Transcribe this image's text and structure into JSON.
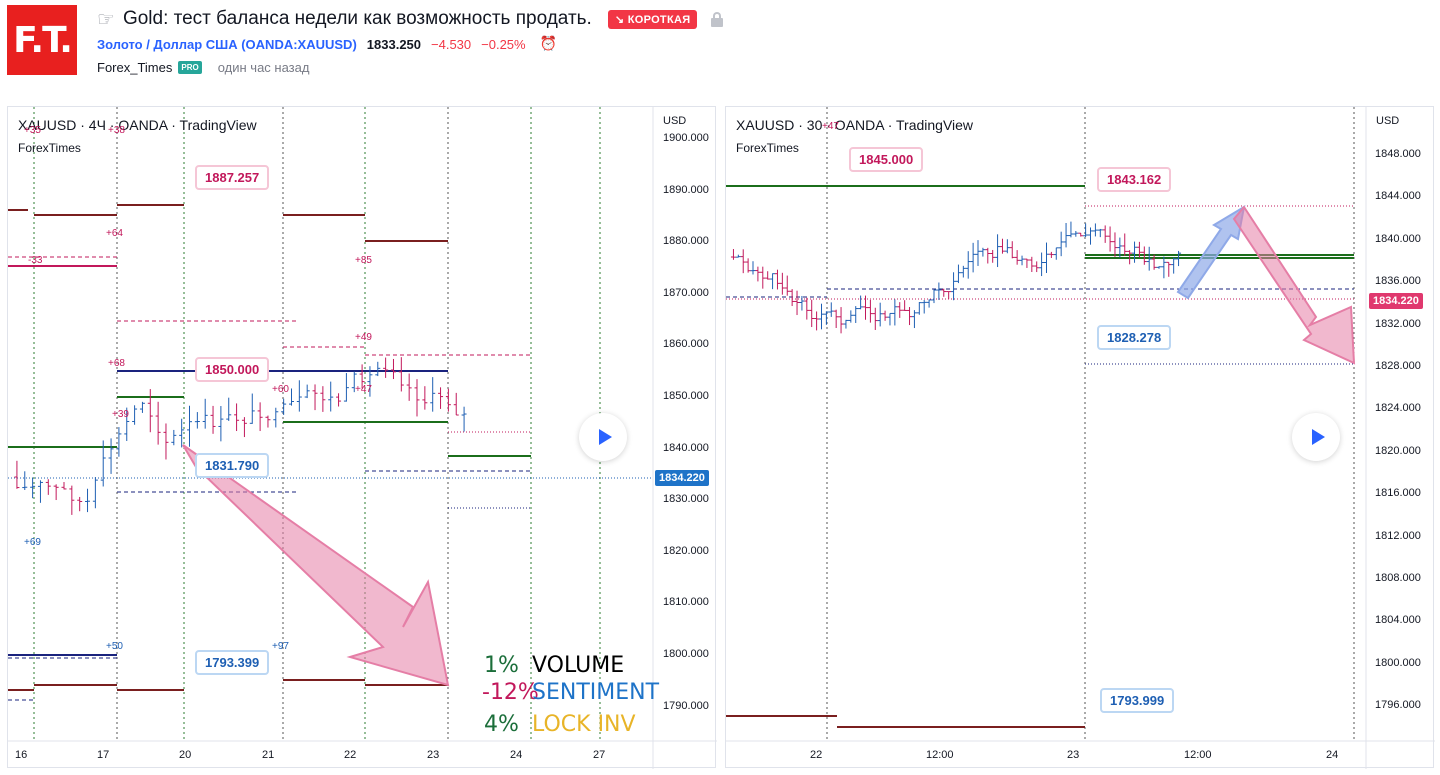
{
  "header": {
    "logo_text": "F.T.",
    "hand_icon": "☞",
    "title": "Gold: тест баланса недели как возможность продать.",
    "badge": "↘ КОРОТКАЯ",
    "symbol_link": "Золото / Доллар США (OANDA:XAUUSD)",
    "price": "1833.250",
    "change": "−4.530",
    "change_pct": "−0.25%",
    "author": "Forex_Times",
    "pro_badge": "PRO",
    "time_ago": "один час назад",
    "icons": [
      "hand-pointing-icon",
      "lock-icon",
      "alarm-clock-icon"
    ]
  },
  "colors": {
    "bear": "#f23645",
    "link": "#2962ff",
    "candle_pink": "#c2185b",
    "candle_blue": "#1e5fb3",
    "dark_red": "#7a1f1f",
    "green": "#1b6e1b",
    "navy": "#1a237e",
    "arrow_pink": "#e57ea6",
    "arrow_blue": "#8fa9e8"
  },
  "chart_left": {
    "legend": "XAUUSD · 4Ч · OANDA · TradingView",
    "sublegend": "ForexTimes",
    "currency": "USD",
    "y_ticks": [
      "1900.000",
      "1890.000",
      "1880.000",
      "1870.000",
      "1860.000",
      "1850.000",
      "1840.000",
      "1830.000",
      "1820.000",
      "1810.000",
      "1800.000",
      "1790.000"
    ],
    "x_ticks": [
      "16",
      "17",
      "20",
      "21",
      "22",
      "23",
      "24",
      "27"
    ],
    "current_price": "1834.220",
    "callouts": {
      "top": "1887.257",
      "mid": "1850.000",
      "current": "1831.790",
      "bottom": "1793.399"
    },
    "level_labels": [
      "+35",
      "+38",
      "+64",
      "-33",
      "+85",
      "+49",
      "+47",
      "+60",
      "+68",
      "+39",
      "+69",
      "+50",
      "+97"
    ],
    "stats": [
      {
        "value": "1%",
        "label": "VOLUME"
      },
      {
        "value": "-12%",
        "label": "SENTIMENT"
      },
      {
        "value": "4%",
        "label": "LOCK INV"
      }
    ]
  },
  "chart_right": {
    "legend": "XAUUSD · 30 · OANDA · TradingView",
    "sublegend": "ForexTimes",
    "currency": "USD",
    "y_ticks": [
      "1848.000",
      "1844.000",
      "1840.000",
      "1836.000",
      "1832.000",
      "1828.000",
      "1824.000",
      "1820.000",
      "1816.000",
      "1812.000",
      "1808.000",
      "1804.000",
      "1800.000",
      "1796.000"
    ],
    "x_ticks": [
      "22",
      "12:00",
      "23",
      "12:00",
      "24"
    ],
    "current_price": "1834.220",
    "callouts": {
      "top_left": "1845.000",
      "top_right": "1843.162",
      "mid": "1828.278",
      "bottom": "1793.999"
    },
    "level_labels": [
      "+47"
    ]
  }
}
